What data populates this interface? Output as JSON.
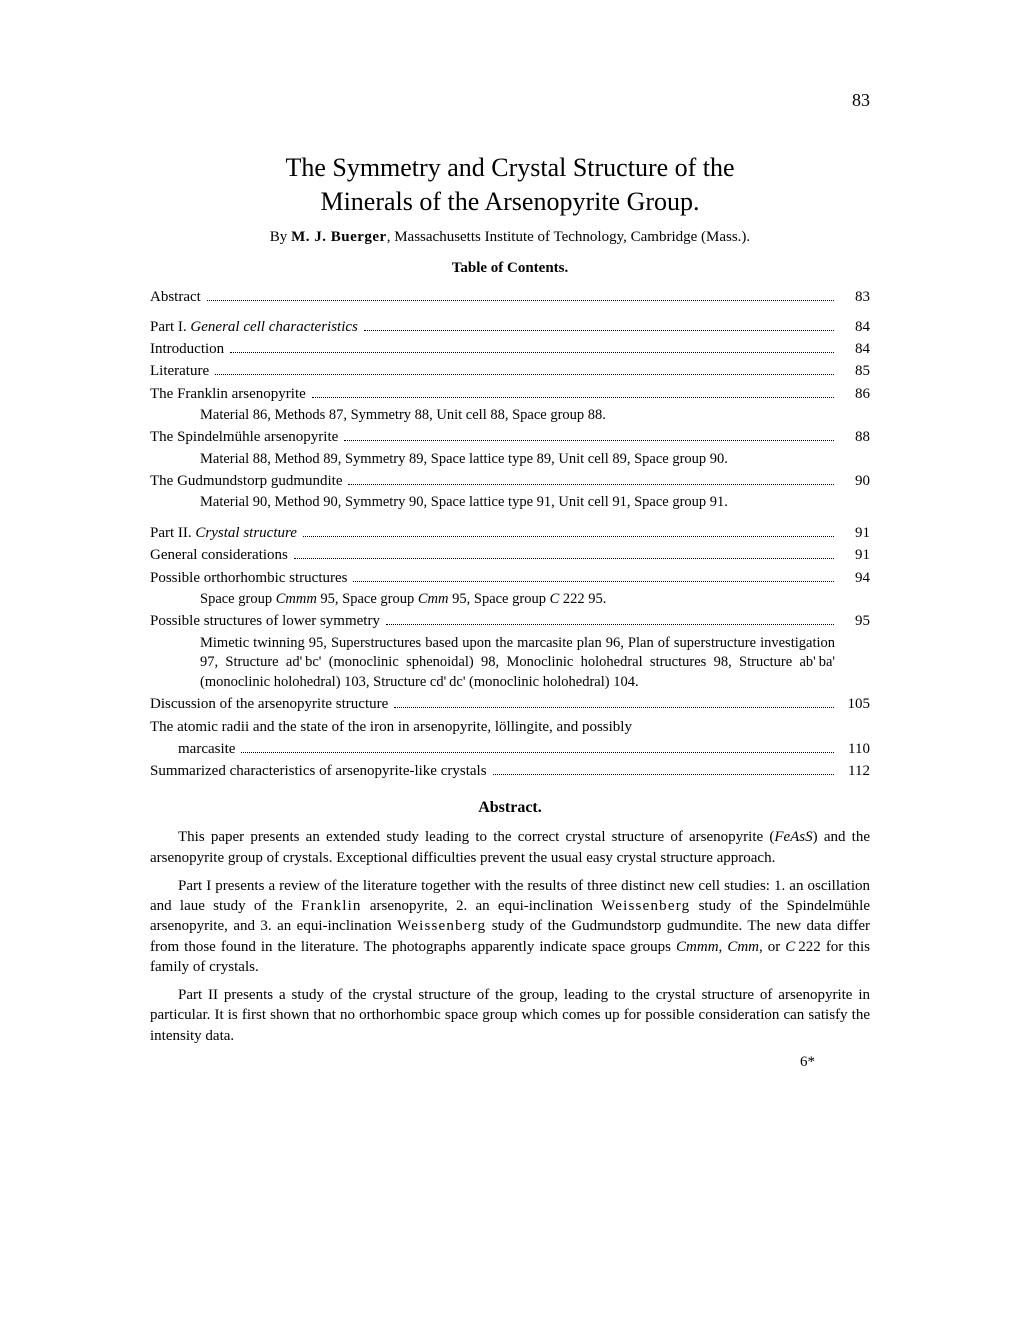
{
  "pageNumber": "83",
  "title_line1": "The Symmetry and Crystal Structure of the",
  "title_line2": "Minerals of the Arsenopyrite Group.",
  "byline_prefix": "By ",
  "author": "M. J. Buerger",
  "byline_suffix": ", Massachusetts Institute of Technology, Cambridge (Mass.).",
  "toc_heading": "Table of Contents.",
  "toc": {
    "abstract": {
      "label": "Abstract",
      "page": "83"
    },
    "part1": {
      "label_prefix": "Part I. ",
      "label_em": "General cell characteristics",
      "page": "84"
    },
    "intro": {
      "label": "Introduction",
      "page": "84"
    },
    "lit": {
      "label": "Literature",
      "page": "85"
    },
    "franklin": {
      "label": "The Franklin arsenopyrite",
      "page": "86"
    },
    "franklin_sub": "Material 86,  Methods 87,  Symmetry 88,  Unit cell 88,  Space group 88.",
    "spindel": {
      "label": "The Spindelmühle arsenopyrite",
      "page": "88"
    },
    "spindel_sub": "Material 88,  Method 89,  Symmetry 89,  Space lattice type 89,  Unit cell 89,  Space group 90.",
    "gud": {
      "label": "The Gudmundstorp gudmundite",
      "page": "90"
    },
    "gud_sub": "Material 90,  Method 90,  Symmetry 90,  Space lattice type 91,  Unit cell 91,  Space group 91.",
    "part2": {
      "label_prefix": "Part II. ",
      "label_em": "Crystal structure",
      "page": "91"
    },
    "gen": {
      "label": "General considerations",
      "page": "91"
    },
    "ortho": {
      "label": "Possible orthorhombic structures",
      "page": "94"
    },
    "ortho_sub_pre": "Space group ",
    "ortho_sub_mid1": " 95,  Space group ",
    "ortho_sub_mid2": " 95,  Space group ",
    "ortho_sub_end": " 222 95.",
    "cmmm": "Cmmm",
    "cmm": "Cmm",
    "c": "C",
    "lower": {
      "label": "Possible structures of lower symmetry",
      "page": "95"
    },
    "lower_sub": "Mimetic twinning 95, Superstructures based upon the marcasite plan 96, Plan of superstructure investigation 97,  Structure ad' bc' (monoclinic sphenoidal) 98,  Monoclinic holohedral structures 98,  Structure ab' ba' (monoclinic holohedral) 103,  Structure cd' dc' (monoclinic holohedral) 104.",
    "disc": {
      "label": "Discussion of the arsenopyrite structure",
      "page": "105"
    },
    "radii": {
      "label": "The atomic radii and the state of the iron in arsenopyrite, löllingite, and possibly",
      "page": ""
    },
    "radii2": {
      "label": "marcasite",
      "page": "110"
    },
    "summ": {
      "label": "Summarized characteristics of arsenopyrite-like crystals",
      "page": "112"
    }
  },
  "abstract_heading": "Abstract.",
  "abstract": {
    "p1_a": "This paper presents an extended study leading to the correct crystal structure of arsenopyrite (",
    "p1_em": "FeAsS",
    "p1_b": ") and the arsenopyrite group of crystals. Exceptional difficulties prevent the usual easy crystal structure approach.",
    "p2_a": "Part I presents a review of the literature together with the results of three distinct new cell studies: 1. an oscillation and laue study of the ",
    "p2_fr": "Franklin",
    "p2_b": " arsenopyrite, 2. an equi-inclination ",
    "p2_w1": "Weissenberg",
    "p2_c": " study of the Spindelmühle arsenopyrite, and 3. an equi-inclination ",
    "p2_w2": "Weissenberg",
    "p2_d": " study of the Gudmundstorp gudmundite. The new data differ from those found in the literature. The photographs apparently indicate space groups ",
    "p2_e": ", or ",
    "p2_f": " 222 for this family of crystals.",
    "p3": "Part II presents a study of the crystal structure of the group, leading to the crystal structure of arsenopyrite in particular. It is first shown that no orthorhombic space group which comes up for possible consideration can satisfy the intensity data."
  },
  "footer_mark": "6*",
  "comma_sp": ", "
}
